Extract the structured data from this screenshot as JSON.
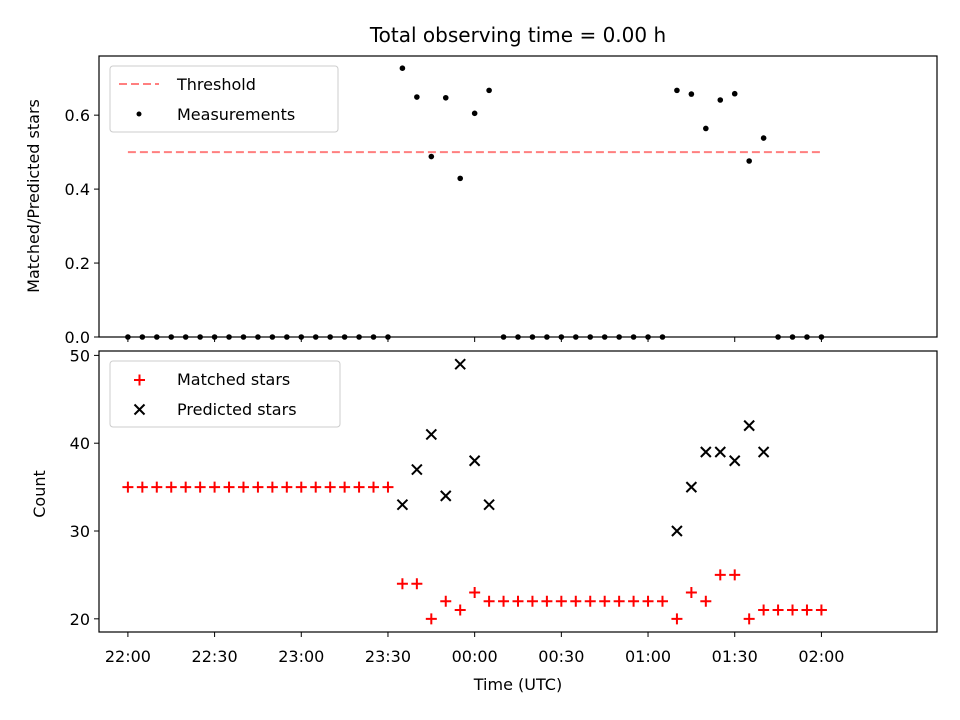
{
  "chart_data": [
    {
      "type": "scatter",
      "title": "Total observing time = 0.00 h",
      "ylabel": "Matched/Predicted stars",
      "ylim": [
        0,
        0.76
      ],
      "yticks": [
        0.0,
        0.2,
        0.4,
        0.6
      ],
      "ytick_labels": [
        "0.0",
        "0.2",
        "0.4",
        "0.6"
      ],
      "xlim": [
        -10,
        280
      ],
      "grid": false,
      "legend_position": "top-left",
      "threshold": {
        "name": "Threshold",
        "value": 0.5,
        "x_range": [
          0,
          240
        ],
        "color": "#ff7f7f"
      },
      "series": [
        {
          "name": "Measurements",
          "color": "#000000",
          "x": [
            0,
            5,
            10,
            15,
            20,
            25,
            30,
            35,
            40,
            45,
            50,
            55,
            60,
            65,
            70,
            75,
            80,
            85,
            90,
            95,
            100,
            105,
            110,
            115,
            120,
            125,
            130,
            135,
            140,
            145,
            150,
            155,
            160,
            165,
            170,
            175,
            180,
            185,
            190,
            195,
            200,
            205,
            210,
            215,
            220,
            225,
            230,
            235,
            240
          ],
          "y": [
            0,
            0,
            0,
            0,
            0,
            0,
            0,
            0,
            0,
            0,
            0,
            0,
            0,
            0,
            0,
            0,
            0,
            0,
            0,
            0.727,
            0.649,
            0.488,
            0.647,
            0.429,
            0.605,
            0.667,
            0,
            0,
            0,
            0,
            0,
            0,
            0,
            0,
            0,
            0,
            0,
            0,
            0.667,
            0.657,
            0.564,
            0.641,
            0.658,
            0.476,
            0.538,
            0,
            0,
            0,
            0
          ]
        }
      ]
    },
    {
      "type": "scatter",
      "xlabel": "Time (UTC)",
      "ylabel": "Count",
      "ylim": [
        18.5,
        50.5
      ],
      "yticks": [
        20,
        30,
        40,
        50
      ],
      "ytick_labels": [
        "20",
        "30",
        "40",
        "50"
      ],
      "xlim": [
        -10,
        280
      ],
      "xticks": [
        0,
        30,
        60,
        90,
        120,
        150,
        180,
        210,
        240
      ],
      "xtick_labels": [
        "22:00",
        "22:30",
        "23:00",
        "23:30",
        "00:00",
        "00:30",
        "01:00",
        "01:30",
        "02:00"
      ],
      "grid": false,
      "legend_position": "top-left",
      "series": [
        {
          "name": "Matched stars",
          "marker": "plus",
          "color": "#ff0000",
          "x": [
            0,
            5,
            10,
            15,
            20,
            25,
            30,
            35,
            40,
            45,
            50,
            55,
            60,
            65,
            70,
            75,
            80,
            85,
            90,
            95,
            100,
            105,
            110,
            115,
            120,
            125,
            130,
            135,
            140,
            145,
            150,
            155,
            160,
            165,
            170,
            175,
            180,
            185,
            190,
            195,
            200,
            205,
            210,
            215,
            220,
            225,
            230,
            235,
            240
          ],
          "y": [
            35,
            35,
            35,
            35,
            35,
            35,
            35,
            35,
            35,
            35,
            35,
            35,
            35,
            35,
            35,
            35,
            35,
            35,
            35,
            24,
            24,
            20,
            22,
            21,
            23,
            22,
            22,
            22,
            22,
            22,
            22,
            22,
            22,
            22,
            22,
            22,
            22,
            22,
            20,
            23,
            22,
            25,
            25,
            20,
            21,
            21,
            21,
            21,
            21
          ]
        },
        {
          "name": "Predicted stars",
          "marker": "x",
          "color": "#000000",
          "x": [
            95,
            100,
            105,
            110,
            115,
            120,
            125,
            190,
            195,
            200,
            205,
            210,
            215,
            220
          ],
          "y": [
            33,
            37,
            41,
            34,
            49,
            38,
            33,
            30,
            35,
            39,
            39,
            38,
            42,
            39
          ]
        }
      ]
    }
  ]
}
